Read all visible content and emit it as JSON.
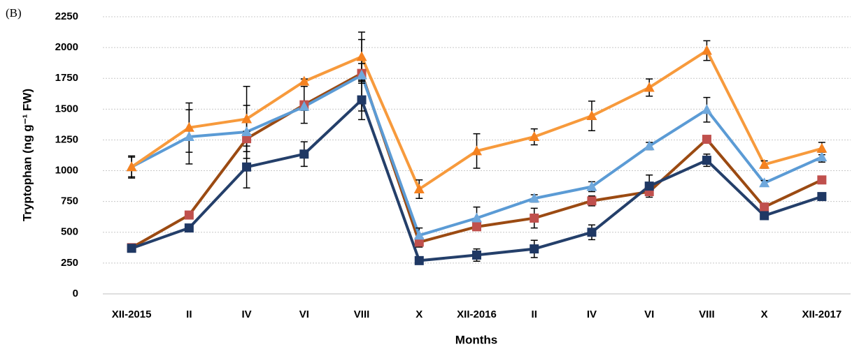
{
  "chart_data": {
    "type": "line",
    "panel_label": "(B)",
    "x_label": "Months",
    "y_label": "Tryptophan (ng g⁻¹ FW)",
    "categories": [
      "XII-2015",
      "II",
      "IV",
      "VI",
      "VIII",
      "X",
      "XII-2016",
      "II",
      "IV",
      "VI",
      "VIII",
      "X",
      "XII-2017"
    ],
    "ylim": [
      0,
      2250
    ],
    "yticks": [
      0,
      250,
      500,
      750,
      1000,
      1250,
      1500,
      1750,
      2000,
      2250
    ],
    "grid": true,
    "series": [
      {
        "color": "#9b4a12",
        "marker_color": "#c0504d",
        "marker": "square",
        "values": [
          375,
          640,
          1260,
          1535,
          1790,
          420,
          545,
          615,
          755,
          830,
          1255,
          705,
          925
        ],
        "errors": [
          30,
          20,
          60,
          150,
          80,
          40,
          20,
          80,
          40,
          30,
          20,
          30,
          20
        ]
      },
      {
        "color": "#243f6a",
        "marker_color": "#1f3864",
        "marker": "square",
        "values": [
          370,
          535,
          1030,
          1135,
          1575,
          270,
          315,
          365,
          500,
          875,
          1085,
          635,
          790
        ],
        "errors": [
          30,
          20,
          170,
          100,
          160,
          20,
          50,
          70,
          60,
          90,
          50,
          20,
          20
        ]
      },
      {
        "color": "#5b9bd5",
        "marker_color": "#6fa8dc",
        "marker": "triangle",
        "values": [
          1030,
          1275,
          1315,
          1520,
          1775,
          475,
          615,
          775,
          870,
          1200,
          1495,
          900,
          1110
        ],
        "errors": [
          80,
          220,
          215,
          30,
          290,
          60,
          90,
          30,
          40,
          30,
          100,
          20,
          40
        ]
      },
      {
        "color": "#f79a3c",
        "marker_color": "#f58220",
        "marker": "triangle",
        "values": [
          1030,
          1350,
          1420,
          1725,
          1925,
          850,
          1160,
          1275,
          1445,
          1675,
          1975,
          1050,
          1180
        ],
        "errors": [
          90,
          200,
          265,
          20,
          200,
          75,
          140,
          65,
          120,
          70,
          80,
          30,
          50
        ]
      }
    ]
  }
}
